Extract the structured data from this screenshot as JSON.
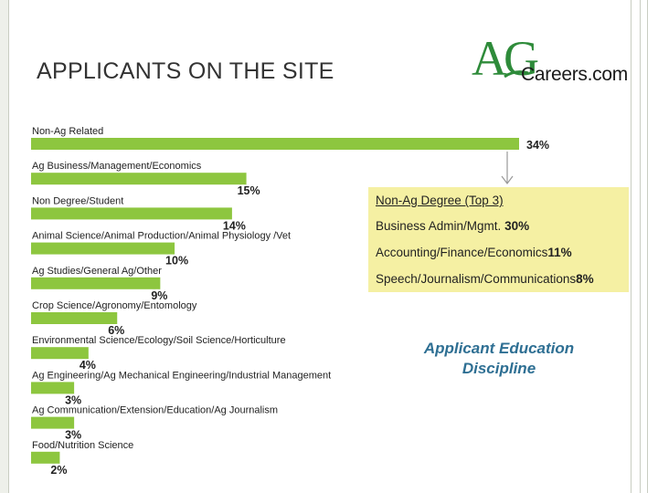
{
  "slide": {
    "title": "APPLICANTS ON THE SITE"
  },
  "logo": {
    "ag": "AG",
    "rest": "Careers.com",
    "green": "#2e8b3a"
  },
  "callout": {
    "title": "Non-Ag Degree (Top 3)",
    "items": [
      {
        "label": "Business Admin/Mgmt.",
        "value": "30%"
      },
      {
        "label": "Accounting/Finance/Economics",
        "value": "11%"
      },
      {
        "label": "Speech/Journalism/Communications",
        "value": "8%"
      }
    ],
    "background": "#f5f0a3"
  },
  "annotation": {
    "line1": "Applicant Education",
    "line2": "Discipline"
  },
  "chart_data": {
    "type": "bar",
    "orientation": "horizontal",
    "bar_color": "#8dc63f",
    "categories": [
      "Non-Ag Related",
      "Ag Business/Management/Economics",
      "Non Degree/Student",
      "Animal Science/Animal Production/Animal Physiology /Vet",
      "Ag Studies/General Ag/Other",
      "Crop Science/Agronomy/Entomology",
      "Environmental Science/Ecology/Soil Science/Horticulture",
      "Ag Engineering/Ag Mechanical Engineering/Industrial Management",
      "Ag Communication/Extension/Education/Ag Journalism",
      "Food/Nutrition Science"
    ],
    "values": [
      34,
      15,
      14,
      10,
      9,
      6,
      4,
      3,
      3,
      2
    ],
    "value_labels": [
      "34%",
      "15%",
      "14%",
      "10%",
      "9%",
      "6%",
      "4%",
      "3%",
      "3%",
      "2%"
    ],
    "xlim": [
      0,
      34
    ],
    "grid": false,
    "legend": "none"
  }
}
